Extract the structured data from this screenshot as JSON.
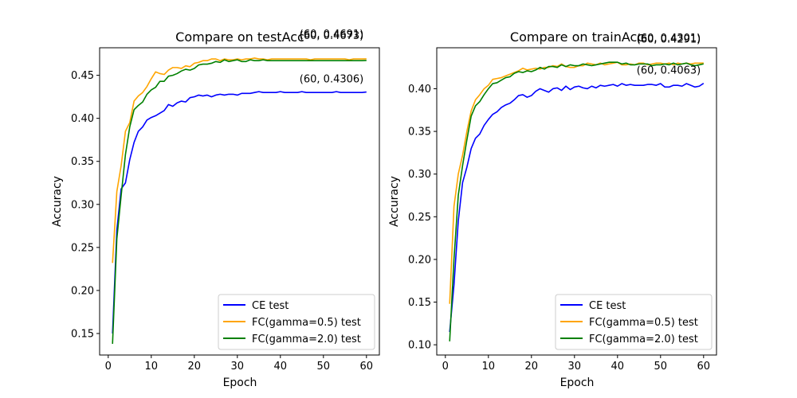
{
  "chart_data": [
    {
      "type": "line",
      "title": "Compare on testAcc",
      "xlabel": "Epoch",
      "ylabel": "Accuracy",
      "xlim": [
        -2,
        63
      ],
      "ylim": [
        0.125,
        0.482
      ],
      "xticks": [
        0,
        10,
        20,
        30,
        40,
        50,
        60
      ],
      "yticks": [
        0.15,
        0.2,
        0.25,
        0.3,
        0.35,
        0.4,
        0.45
      ],
      "ytick_labels": [
        "0.15",
        "0.20",
        "0.25",
        "0.30",
        "0.35",
        "0.40",
        "0.45"
      ],
      "grid": false,
      "legend_position": "lower-right",
      "x": [
        1,
        2,
        3,
        4,
        5,
        6,
        7,
        8,
        9,
        10,
        11,
        12,
        13,
        14,
        15,
        16,
        17,
        18,
        19,
        20,
        21,
        22,
        23,
        24,
        25,
        26,
        27,
        28,
        29,
        30,
        31,
        32,
        33,
        34,
        35,
        36,
        37,
        38,
        39,
        40,
        41,
        42,
        43,
        44,
        45,
        46,
        47,
        48,
        49,
        50,
        51,
        52,
        53,
        54,
        55,
        56,
        57,
        58,
        59,
        60
      ],
      "series": [
        {
          "name": "CE test",
          "color": "#0000ff",
          "values": [
            0.15,
            0.27,
            0.318,
            0.325,
            0.352,
            0.372,
            0.385,
            0.39,
            0.398,
            0.401,
            0.403,
            0.406,
            0.409,
            0.416,
            0.414,
            0.418,
            0.42,
            0.419,
            0.424,
            0.425,
            0.427,
            0.426,
            0.427,
            0.425,
            0.427,
            0.428,
            0.427,
            0.428,
            0.428,
            0.427,
            0.429,
            0.429,
            0.429,
            0.43,
            0.431,
            0.43,
            0.43,
            0.43,
            0.43,
            0.431,
            0.43,
            0.43,
            0.43,
            0.43,
            0.431,
            0.43,
            0.43,
            0.43,
            0.43,
            0.43,
            0.43,
            0.43,
            0.431,
            0.43,
            0.43,
            0.43,
            0.43,
            0.43,
            0.43,
            0.4306
          ]
        },
        {
          "name": "FC(gamma=0.5) test",
          "color": "#ffa500",
          "values": [
            0.232,
            0.315,
            0.345,
            0.385,
            0.395,
            0.42,
            0.426,
            0.43,
            0.437,
            0.446,
            0.454,
            0.452,
            0.451,
            0.456,
            0.459,
            0.459,
            0.458,
            0.461,
            0.46,
            0.464,
            0.465,
            0.467,
            0.467,
            0.469,
            0.469,
            0.467,
            0.469,
            0.468,
            0.468,
            0.469,
            0.468,
            0.469,
            0.469,
            0.47,
            0.469,
            0.469,
            0.468,
            0.469,
            0.469,
            0.469,
            0.469,
            0.469,
            0.469,
            0.469,
            0.469,
            0.469,
            0.468,
            0.469,
            0.469,
            0.469,
            0.469,
            0.469,
            0.469,
            0.469,
            0.469,
            0.468,
            0.469,
            0.469,
            0.469,
            0.4691
          ]
        },
        {
          "name": "FC(gamma=2.0) test",
          "color": "#008000",
          "values": [
            0.138,
            0.26,
            0.31,
            0.358,
            0.39,
            0.41,
            0.415,
            0.419,
            0.428,
            0.433,
            0.436,
            0.443,
            0.443,
            0.449,
            0.45,
            0.452,
            0.455,
            0.457,
            0.456,
            0.458,
            0.462,
            0.463,
            0.463,
            0.464,
            0.466,
            0.465,
            0.468,
            0.466,
            0.467,
            0.468,
            0.466,
            0.466,
            0.468,
            0.467,
            0.467,
            0.468,
            0.467,
            0.467,
            0.467,
            0.467,
            0.467,
            0.467,
            0.467,
            0.467,
            0.467,
            0.467,
            0.467,
            0.467,
            0.467,
            0.467,
            0.467,
            0.467,
            0.467,
            0.467,
            0.467,
            0.467,
            0.467,
            0.467,
            0.467,
            0.4673
          ]
        }
      ],
      "annotations": [
        {
          "text": "(60, 0.4691)",
          "x": 60,
          "y": 0.4691
        },
        {
          "text": "(60, 0.4673)",
          "x": 60,
          "y": 0.4673
        },
        {
          "text": "(60, 0.4306)",
          "x": 60,
          "y": 0.4306
        }
      ]
    },
    {
      "type": "line",
      "title": "Compare on trainAcc",
      "xlabel": "Epoch",
      "ylabel": "Accuracy",
      "xlim": [
        -2,
        63
      ],
      "ylim": [
        0.088,
        0.448
      ],
      "xticks": [
        0,
        10,
        20,
        30,
        40,
        50,
        60
      ],
      "yticks": [
        0.1,
        0.15,
        0.2,
        0.25,
        0.3,
        0.35,
        0.4
      ],
      "ytick_labels": [
        "0.10",
        "0.15",
        "0.20",
        "0.25",
        "0.30",
        "0.35",
        "0.40"
      ],
      "grid": false,
      "legend_position": "lower-right",
      "x": [
        1,
        2,
        3,
        4,
        5,
        6,
        7,
        8,
        9,
        10,
        11,
        12,
        13,
        14,
        15,
        16,
        17,
        18,
        19,
        20,
        21,
        22,
        23,
        24,
        25,
        26,
        27,
        28,
        29,
        30,
        31,
        32,
        33,
        34,
        35,
        36,
        37,
        38,
        39,
        40,
        41,
        42,
        43,
        44,
        45,
        46,
        47,
        48,
        49,
        50,
        51,
        52,
        53,
        54,
        55,
        56,
        57,
        58,
        59,
        60
      ],
      "series": [
        {
          "name": "CE test",
          "color": "#0000ff",
          "values": [
            0.115,
            0.17,
            0.245,
            0.29,
            0.308,
            0.33,
            0.342,
            0.347,
            0.357,
            0.364,
            0.37,
            0.373,
            0.378,
            0.381,
            0.383,
            0.387,
            0.392,
            0.393,
            0.39,
            0.392,
            0.397,
            0.4,
            0.398,
            0.396,
            0.4,
            0.401,
            0.398,
            0.403,
            0.399,
            0.402,
            0.403,
            0.401,
            0.4,
            0.403,
            0.401,
            0.404,
            0.403,
            0.404,
            0.405,
            0.403,
            0.406,
            0.404,
            0.405,
            0.404,
            0.404,
            0.404,
            0.405,
            0.405,
            0.404,
            0.406,
            0.402,
            0.402,
            0.404,
            0.404,
            0.403,
            0.406,
            0.404,
            0.402,
            0.403,
            0.4063
          ]
        },
        {
          "name": "FC(gamma=0.5) test",
          "color": "#ffa500",
          "values": [
            0.148,
            0.262,
            0.3,
            0.322,
            0.35,
            0.374,
            0.387,
            0.393,
            0.4,
            0.404,
            0.411,
            0.412,
            0.413,
            0.415,
            0.417,
            0.419,
            0.421,
            0.424,
            0.422,
            0.423,
            0.424,
            0.423,
            0.425,
            0.425,
            0.427,
            0.426,
            0.429,
            0.426,
            0.425,
            0.425,
            0.427,
            0.427,
            0.43,
            0.429,
            0.428,
            0.43,
            0.428,
            0.429,
            0.43,
            0.431,
            0.428,
            0.428,
            0.429,
            0.428,
            0.43,
            0.43,
            0.428,
            0.429,
            0.43,
            0.43,
            0.429,
            0.43,
            0.428,
            0.43,
            0.429,
            0.43,
            0.429,
            0.43,
            0.43,
            0.4301
          ]
        },
        {
          "name": "FC(gamma=2.0) test",
          "color": "#008000",
          "values": [
            0.104,
            0.2,
            0.275,
            0.31,
            0.34,
            0.368,
            0.38,
            0.385,
            0.393,
            0.4,
            0.406,
            0.407,
            0.41,
            0.413,
            0.414,
            0.418,
            0.42,
            0.419,
            0.421,
            0.42,
            0.422,
            0.425,
            0.423,
            0.426,
            0.426,
            0.425,
            0.428,
            0.426,
            0.428,
            0.427,
            0.427,
            0.429,
            0.428,
            0.427,
            0.428,
            0.429,
            0.43,
            0.431,
            0.431,
            0.431,
            0.429,
            0.43,
            0.428,
            0.428,
            0.429,
            0.429,
            0.429,
            0.427,
            0.428,
            0.428,
            0.429,
            0.428,
            0.43,
            0.428,
            0.429,
            0.43,
            0.428,
            0.427,
            0.428,
            0.4291
          ]
        }
      ],
      "annotations": [
        {
          "text": "(60, 0.4301)",
          "x": 60,
          "y": 0.4301
        },
        {
          "text": "(60, 0.4291)",
          "x": 60,
          "y": 0.4291
        },
        {
          "text": "(60, 0.4063)",
          "x": 60,
          "y": 0.4063
        }
      ]
    }
  ]
}
